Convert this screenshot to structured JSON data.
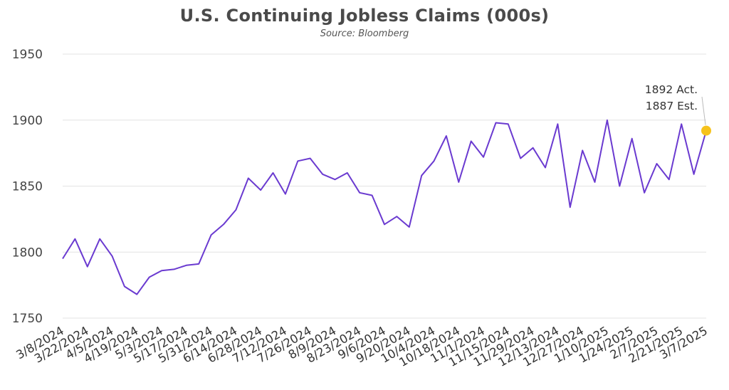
{
  "chart_data": {
    "type": "line",
    "title": "U.S. Continuing Jobless Claims (000s)",
    "subtitle": "Source: Bloomberg",
    "xlabel": "",
    "ylabel": "",
    "ylim": [
      1750,
      1950
    ],
    "yticks": [
      1750,
      1800,
      1850,
      1900,
      1950
    ],
    "grid": true,
    "legend": "none",
    "line_color": "#6a3ad0",
    "marker_color": "#f6c21c",
    "x_tick_labels": [
      "3/8/2024",
      "3/22/2024",
      "4/5/2024",
      "4/19/2024",
      "5/3/2024",
      "5/17/2024",
      "5/31/2024",
      "6/14/2024",
      "6/28/2024",
      "7/12/2024",
      "7/26/2024",
      "8/9/2024",
      "8/23/2024",
      "9/6/2024",
      "9/20/2024",
      "10/4/2024",
      "10/18/2024",
      "11/1/2024",
      "11/15/2024",
      "11/29/2024",
      "12/13/2024",
      "12/27/2024",
      "1/10/2025",
      "1/24/2025",
      "2/7/2025",
      "2/21/2025",
      "3/7/2025"
    ],
    "x": [
      "3/8/2024",
      "3/15/2024",
      "3/22/2024",
      "3/29/2024",
      "4/5/2024",
      "4/12/2024",
      "4/19/2024",
      "4/26/2024",
      "5/3/2024",
      "5/10/2024",
      "5/17/2024",
      "5/24/2024",
      "5/31/2024",
      "6/7/2024",
      "6/14/2024",
      "6/21/2024",
      "6/28/2024",
      "7/5/2024",
      "7/12/2024",
      "7/19/2024",
      "7/26/2024",
      "8/2/2024",
      "8/9/2024",
      "8/16/2024",
      "8/23/2024",
      "8/30/2024",
      "9/6/2024",
      "9/13/2024",
      "9/20/2024",
      "9/27/2024",
      "10/4/2024",
      "10/11/2024",
      "10/18/2024",
      "10/25/2024",
      "11/1/2024",
      "11/8/2024",
      "11/15/2024",
      "11/22/2024",
      "11/29/2024",
      "12/6/2024",
      "12/13/2024",
      "12/20/2024",
      "12/27/2024",
      "1/3/2025",
      "1/10/2025",
      "1/17/2025",
      "1/24/2025",
      "1/31/2025",
      "2/7/2025",
      "2/14/2025",
      "2/21/2025",
      "2/28/2025",
      "3/7/2025"
    ],
    "values": [
      1795,
      1810,
      1789,
      1810,
      1797,
      1774,
      1768,
      1781,
      1786,
      1787,
      1790,
      1791,
      1813,
      1821,
      1832,
      1856,
      1847,
      1860,
      1844,
      1869,
      1871,
      1859,
      1855,
      1860,
      1845,
      1843,
      1821,
      1827,
      1819,
      1858,
      1869,
      1888,
      1853,
      1884,
      1872,
      1898,
      1897,
      1871,
      1879,
      1864,
      1897,
      1834,
      1877,
      1853,
      1900,
      1850,
      1886,
      1845,
      1867,
      1855,
      1897,
      1859,
      1892
    ],
    "annotation": {
      "line1": "1892 Act.",
      "line2": "1887 Est.",
      "x": "3/7/2025",
      "y": 1892
    }
  }
}
